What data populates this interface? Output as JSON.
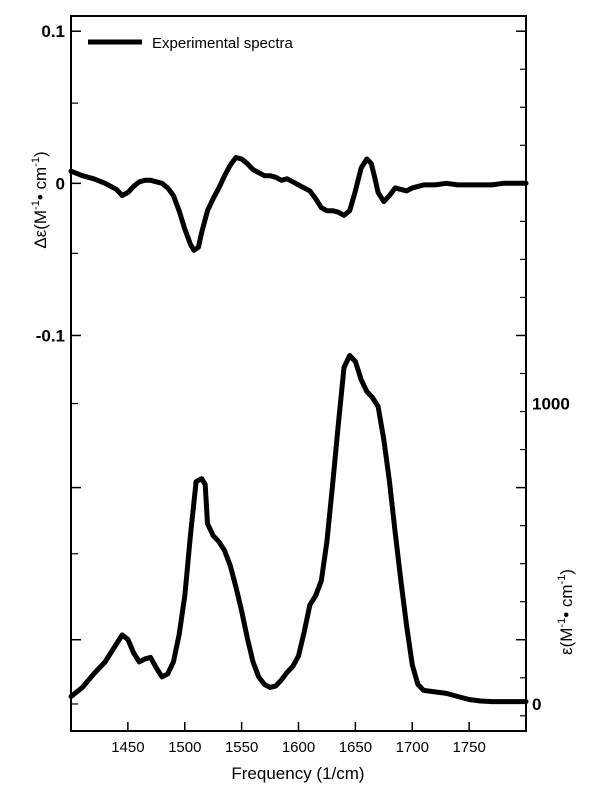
{
  "chart_data": {
    "type": "line",
    "title": "",
    "xlabel": "Frequency (1/cm)",
    "xlim": [
      1400,
      1800
    ],
    "x_ticks": [
      1450,
      1500,
      1550,
      1600,
      1650,
      1700,
      1750
    ],
    "x_tick_labels": [
      "1450",
      "1500",
      "1550",
      "1600",
      "1650",
      "1700",
      "1750"
    ],
    "left_axis": {
      "label_main": "Δε(M",
      "label_sup1": "-1",
      "label_mid": "• cm",
      "label_sup2": "-1",
      "label_end": ")",
      "ylim": [
        -0.36,
        0.11
      ],
      "labeled_ticks": [
        0.1,
        0,
        -0.1
      ],
      "labeled_tick_text": [
        "0.1",
        "0",
        "-0.1"
      ],
      "major_ticks": [
        0.1,
        0,
        -0.1,
        -0.2,
        -0.3
      ],
      "minor_ticks": [
        0.075,
        0.05,
        0.025,
        -0.025,
        -0.05,
        -0.075,
        -0.125,
        -0.15,
        -0.175,
        -0.225,
        -0.25,
        -0.275,
        -0.325,
        -0.35
      ]
    },
    "right_axis": {
      "label_main": "ε(M",
      "label_sup1": "-1",
      "label_mid": "• cm",
      "label_sup2": "-1",
      "label_end": ")",
      "ylim": [
        -90,
        2290
      ],
      "labeled_ticks": [
        0,
        1000
      ],
      "labeled_tick_text": [
        "0",
        "1000"
      ],
      "major_ticks": [
        0,
        1000,
        2000
      ],
      "minor_ticks": [
        500,
        1500
      ]
    },
    "legend": {
      "position": "top-left",
      "entries": [
        "Experimental spectra"
      ]
    },
    "grid": false,
    "series": [
      {
        "name": "Experimental spectra",
        "axis": "left",
        "x": [
          1400,
          1410,
          1420,
          1430,
          1440,
          1445,
          1450,
          1455,
          1460,
          1465,
          1470,
          1480,
          1485,
          1490,
          1495,
          1500,
          1505,
          1508,
          1512,
          1515,
          1520,
          1525,
          1530,
          1535,
          1540,
          1545,
          1550,
          1555,
          1560,
          1570,
          1575,
          1580,
          1585,
          1590,
          1595,
          1600,
          1605,
          1610,
          1615,
          1620,
          1625,
          1630,
          1635,
          1640,
          1645,
          1650,
          1655,
          1660,
          1664,
          1667,
          1670,
          1675,
          1680,
          1685,
          1690,
          1695,
          1700,
          1710,
          1720,
          1730,
          1740,
          1750,
          1760,
          1770,
          1780,
          1790,
          1800
        ],
        "y": [
          0.008,
          0.005,
          0.003,
          0.0,
          -0.004,
          -0.008,
          -0.006,
          -0.002,
          0.001,
          0.002,
          0.002,
          0.0,
          -0.003,
          -0.008,
          -0.018,
          -0.03,
          -0.04,
          -0.044,
          -0.042,
          -0.032,
          -0.018,
          -0.01,
          -0.003,
          0.005,
          0.012,
          0.017,
          0.016,
          0.013,
          0.009,
          0.005,
          0.005,
          0.004,
          0.002,
          0.003,
          0.001,
          -0.001,
          -0.003,
          -0.005,
          -0.01,
          -0.016,
          -0.018,
          -0.018,
          -0.019,
          -0.021,
          -0.018,
          -0.005,
          0.01,
          0.016,
          0.013,
          0.004,
          -0.006,
          -0.012,
          -0.008,
          -0.003,
          -0.004,
          -0.005,
          -0.003,
          -0.001,
          -0.001,
          0.0,
          -0.001,
          -0.001,
          -0.001,
          -0.001,
          0.0,
          0.0,
          0.0
        ]
      },
      {
        "name": "",
        "axis": "right",
        "x": [
          1400,
          1410,
          1420,
          1430,
          1440,
          1445,
          1450,
          1455,
          1460,
          1465,
          1470,
          1475,
          1480,
          1485,
          1490,
          1495,
          1500,
          1505,
          1510,
          1515,
          1518,
          1520,
          1525,
          1530,
          1535,
          1540,
          1545,
          1550,
          1555,
          1560,
          1565,
          1570,
          1575,
          1580,
          1585,
          1590,
          1595,
          1600,
          1605,
          1610,
          1615,
          1620,
          1625,
          1630,
          1635,
          1640,
          1645,
          1650,
          1655,
          1660,
          1665,
          1670,
          1675,
          1680,
          1685,
          1690,
          1695,
          1700,
          1705,
          1710,
          1720,
          1730,
          1740,
          1750,
          1760,
          1770,
          1780,
          1790,
          1800
        ],
        "y": [
          25,
          55,
          100,
          140,
          200,
          230,
          215,
          170,
          140,
          150,
          155,
          120,
          90,
          100,
          140,
          230,
          360,
          560,
          740,
          750,
          730,
          600,
          560,
          540,
          510,
          460,
          390,
          310,
          220,
          140,
          90,
          65,
          55,
          60,
          80,
          105,
          125,
          160,
          240,
          330,
          360,
          410,
          540,
          730,
          930,
          1120,
          1160,
          1140,
          1080,
          1040,
          1020,
          990,
          880,
          740,
          570,
          410,
          260,
          130,
          65,
          45,
          40,
          35,
          25,
          15,
          10,
          8,
          8,
          8,
          8
        ]
      }
    ]
  }
}
